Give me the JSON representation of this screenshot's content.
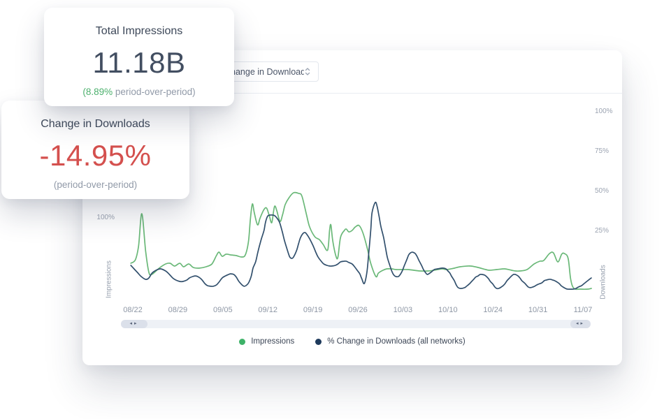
{
  "cards": {
    "impressions": {
      "title": "Total Impressions",
      "value": "11.18B",
      "delta_highlight": "(8.89%",
      "delta_rest": " period-over-period)",
      "delta_color": "#4cb06d"
    },
    "downloads": {
      "title": "Change in Downloads",
      "value": "-14.95%",
      "subtitle": "(period-over-period)",
      "value_color": "#d4504e"
    }
  },
  "panel": {
    "metric_dropdown": {
      "selected": "Change in Downloads"
    },
    "scrollbar": {
      "left_icon": "◂▸",
      "right_icon": "◂▸"
    }
  },
  "chart_data": {
    "type": "line",
    "x_axis": {
      "tick_labels": [
        "08/22",
        "08/29",
        "09/05",
        "09/12",
        "09/19",
        "09/26",
        "10/03",
        "10/10",
        "10/24",
        "10/31",
        "11/07"
      ]
    },
    "left_axis": {
      "title": "Impressions",
      "ticks": [
        {
          "label": "100%",
          "value": 100
        }
      ]
    },
    "right_axis": {
      "title": "Downloads",
      "ticks": [
        {
          "label": "100%",
          "value": 100
        },
        {
          "label": "75%",
          "value": 75
        },
        {
          "label": "50%",
          "value": 50
        },
        {
          "label": "25%",
          "value": 25
        }
      ]
    },
    "legend": [
      {
        "label": "Impressions",
        "color": "#3eb268"
      },
      {
        "label": "% Change in Downloads (all networks)",
        "color": "#1e3a5c"
      }
    ],
    "series": [
      {
        "name": "Impressions",
        "axis": "left",
        "color": "#6ab878",
        "unit": "pct",
        "points": [
          [
            -0.3,
            14.5
          ],
          [
            0.4,
            21.1
          ],
          [
            0.9,
            47.4
          ],
          [
            1.4,
            107.9
          ],
          [
            2,
            36.8
          ],
          [
            2.5,
            -2.6
          ],
          [
            2.9,
            -6.6
          ],
          [
            3.5,
            -1.3
          ],
          [
            4.1,
            5.3
          ],
          [
            5.1,
            13.2
          ],
          [
            5.8,
            14.5
          ],
          [
            6.5,
            9.2
          ],
          [
            7.3,
            14.5
          ],
          [
            7.9,
            7.9
          ],
          [
            8.7,
            13.2
          ],
          [
            9.4,
            6.6
          ],
          [
            10.3,
            5.3
          ],
          [
            11.4,
            7.9
          ],
          [
            12.3,
            13.2
          ],
          [
            13,
            28.9
          ],
          [
            13.4,
            35.5
          ],
          [
            13.9,
            27.6
          ],
          [
            14.5,
            31.6
          ],
          [
            15.2,
            30.3
          ],
          [
            16.1,
            28.9
          ],
          [
            16.9,
            26.3
          ],
          [
            17.5,
            30.3
          ],
          [
            18,
            56.6
          ],
          [
            18.3,
            100
          ],
          [
            18.6,
            126.3
          ],
          [
            18.9,
            109.2
          ],
          [
            19.4,
            86.8
          ],
          [
            19.8,
            100
          ],
          [
            20.4,
            115.8
          ],
          [
            20.8,
            118.4
          ],
          [
            21.2,
            105.3
          ],
          [
            21.6,
            90.8
          ],
          [
            21.9,
            113.2
          ],
          [
            22.1,
            122.4
          ],
          [
            22.4,
            113.2
          ],
          [
            22.9,
            93.4
          ],
          [
            23.3,
            106.6
          ],
          [
            23.7,
            125
          ],
          [
            24.3,
            138.2
          ],
          [
            25,
            147.4
          ],
          [
            25.8,
            146.1
          ],
          [
            26.3,
            140.8
          ],
          [
            27,
            106.6
          ],
          [
            27.5,
            82.9
          ],
          [
            28.3,
            64.5
          ],
          [
            29,
            59.2
          ],
          [
            29.6,
            50
          ],
          [
            30.3,
            39.5
          ],
          [
            30.6,
            76.3
          ],
          [
            30.8,
            86.8
          ],
          [
            31.1,
            56.6
          ],
          [
            31.6,
            27.6
          ],
          [
            31.9,
            26.3
          ],
          [
            32.3,
            63.2
          ],
          [
            32.9,
            76.3
          ],
          [
            33.2,
            78.9
          ],
          [
            33.6,
            73.7
          ],
          [
            34.1,
            76.3
          ],
          [
            34.6,
            82.9
          ],
          [
            35.2,
            85.5
          ],
          [
            35.8,
            71.1
          ],
          [
            36.5,
            40.8
          ],
          [
            37,
            14.5
          ],
          [
            37.8,
            -10.5
          ],
          [
            38.2,
            -3.9
          ],
          [
            38.9,
            1.3
          ],
          [
            39.5,
            3.9
          ],
          [
            40.3,
            3.9
          ],
          [
            41,
            2.6
          ],
          [
            42.8,
            2.6
          ],
          [
            44.6,
            0
          ],
          [
            46,
            0
          ],
          [
            46.8,
            1.3
          ],
          [
            48.1,
            3.9
          ],
          [
            48.8,
            2.6
          ],
          [
            50,
            5.3
          ],
          [
            50.9,
            7.9
          ],
          [
            52,
            9.2
          ],
          [
            52.6,
            9.2
          ],
          [
            53.7,
            6.6
          ],
          [
            54.9,
            2.6
          ],
          [
            55.5,
            1.3
          ],
          [
            56.6,
            2.6
          ],
          [
            57.8,
            3.9
          ],
          [
            58.9,
            1.3
          ],
          [
            59.5,
            0
          ],
          [
            60.2,
            0
          ],
          [
            61.3,
            2.6
          ],
          [
            62.4,
            13.2
          ],
          [
            63.3,
            18.4
          ],
          [
            63.9,
            19.7
          ],
          [
            64.8,
            32.9
          ],
          [
            65.4,
            34.2
          ],
          [
            66.1,
            17.1
          ],
          [
            66.7,
            31.6
          ],
          [
            67.1,
            32.9
          ],
          [
            67.7,
            23.7
          ],
          [
            68.1,
            -15.8
          ],
          [
            68.6,
            -32.9
          ],
          [
            69.6,
            -34.2
          ],
          [
            70.8,
            -34.2
          ],
          [
            71.3,
            -32.9
          ]
        ]
      },
      {
        "name": "% Change in Downloads (all networks)",
        "axis": "right",
        "color": "#32506d",
        "unit": "pct",
        "points": [
          [
            -0.3,
            3.5
          ],
          [
            0.2,
            1.3
          ],
          [
            0.8,
            -1.3
          ],
          [
            1.3,
            -3.5
          ],
          [
            2,
            -5.3
          ],
          [
            2.5,
            -4.4
          ],
          [
            3,
            -1.3
          ],
          [
            3.6,
            0.4
          ],
          [
            4.3,
            1.3
          ],
          [
            5.1,
            0
          ],
          [
            5.7,
            -2.2
          ],
          [
            6.2,
            -4.4
          ],
          [
            6.7,
            -5.7
          ],
          [
            7.3,
            -6.6
          ],
          [
            7.8,
            -6.6
          ],
          [
            8.4,
            -5.7
          ],
          [
            8.8,
            -4.4
          ],
          [
            9.3,
            -3.5
          ],
          [
            9.7,
            -3.1
          ],
          [
            10.1,
            -3.5
          ],
          [
            10.7,
            -5.3
          ],
          [
            11.2,
            -7.9
          ],
          [
            11.6,
            -9.2
          ],
          [
            12.1,
            -9.6
          ],
          [
            12.5,
            -9.6
          ],
          [
            13,
            -8.8
          ],
          [
            13.4,
            -7
          ],
          [
            13.9,
            -4.4
          ],
          [
            14.4,
            -3.1
          ],
          [
            14.9,
            -2.2
          ],
          [
            15.2,
            -1.8
          ],
          [
            15.7,
            -2.2
          ],
          [
            16.1,
            -3.9
          ],
          [
            16.5,
            -6.6
          ],
          [
            17,
            -8.8
          ],
          [
            17.3,
            -9.6
          ],
          [
            17.6,
            -9.2
          ],
          [
            18,
            -7.5
          ],
          [
            18.4,
            -3.5
          ],
          [
            18.7,
            1.8
          ],
          [
            19.1,
            5.7
          ],
          [
            19.4,
            11
          ],
          [
            19.7,
            15.8
          ],
          [
            20,
            20.2
          ],
          [
            20.4,
            25.4
          ],
          [
            20.6,
            29.8
          ],
          [
            20.8,
            32.9
          ],
          [
            21,
            34.6
          ],
          [
            21.3,
            35.1
          ],
          [
            21.8,
            35.1
          ],
          [
            22.1,
            34.6
          ],
          [
            22.4,
            33.3
          ],
          [
            22.8,
            30.7
          ],
          [
            23.2,
            25.4
          ],
          [
            23.6,
            18.9
          ],
          [
            24.1,
            12.3
          ],
          [
            24.4,
            8.8
          ],
          [
            24.7,
            7.9
          ],
          [
            25,
            8.8
          ],
          [
            25.5,
            13.2
          ],
          [
            25.8,
            17.5
          ],
          [
            26.1,
            21.1
          ],
          [
            26.5,
            23.7
          ],
          [
            26.8,
            24.1
          ],
          [
            27.1,
            22.8
          ],
          [
            27.5,
            20.2
          ],
          [
            28,
            16.2
          ],
          [
            28.4,
            12.3
          ],
          [
            28.8,
            8.8
          ],
          [
            29.3,
            6.1
          ],
          [
            29.7,
            4.4
          ],
          [
            30.2,
            3.5
          ],
          [
            30.6,
            3.1
          ],
          [
            31,
            3.1
          ],
          [
            31.5,
            3.5
          ],
          [
            31.9,
            4.4
          ],
          [
            32.3,
            5.7
          ],
          [
            32.8,
            6.1
          ],
          [
            33.2,
            6.1
          ],
          [
            33.6,
            5.3
          ],
          [
            34.1,
            4.4
          ],
          [
            34.5,
            2.6
          ],
          [
            34.9,
            0.4
          ],
          [
            35.3,
            -1.8
          ],
          [
            35.6,
            -4.8
          ],
          [
            36,
            -7.9
          ],
          [
            36.4,
            -0.9
          ],
          [
            36.7,
            11.4
          ],
          [
            37,
            25.4
          ],
          [
            37.2,
            36.4
          ],
          [
            37.7,
            43
          ],
          [
            38,
            40.4
          ],
          [
            38.3,
            34.2
          ],
          [
            38.6,
            27.6
          ],
          [
            39,
            21.1
          ],
          [
            39.3,
            14.5
          ],
          [
            39.6,
            8.3
          ],
          [
            40,
            3.1
          ],
          [
            40.3,
            -0.4
          ],
          [
            40.6,
            -2.6
          ],
          [
            40.9,
            -3.5
          ],
          [
            41.3,
            -3.5
          ],
          [
            41.6,
            -2.2
          ],
          [
            41.9,
            0
          ],
          [
            42.2,
            3.1
          ],
          [
            42.6,
            7
          ],
          [
            42.9,
            10.1
          ],
          [
            43.2,
            11.4
          ],
          [
            43.5,
            11.8
          ],
          [
            43.9,
            11
          ],
          [
            44.2,
            9.2
          ],
          [
            44.5,
            6.6
          ],
          [
            44.9,
            3.5
          ],
          [
            45.2,
            0.9
          ],
          [
            45.5,
            -0.9
          ],
          [
            45.8,
            -2.2
          ],
          [
            46.2,
            -1.3
          ],
          [
            46.5,
            -0.4
          ],
          [
            46.9,
            0.9
          ],
          [
            47.4,
            1.3
          ],
          [
            48.2,
            1.8
          ],
          [
            48.7,
            1.3
          ],
          [
            49,
            0
          ],
          [
            49.3,
            -1.3
          ],
          [
            49.6,
            -3.5
          ],
          [
            50,
            -6.1
          ],
          [
            50.3,
            -8.8
          ],
          [
            50.6,
            -10.5
          ],
          [
            51,
            -11
          ],
          [
            51.6,
            -10.5
          ],
          [
            51.9,
            -9.6
          ],
          [
            52.4,
            -7.9
          ],
          [
            52.7,
            -6.6
          ],
          [
            53,
            -5.3
          ],
          [
            53.3,
            -3.9
          ],
          [
            53.7,
            -3.1
          ],
          [
            54,
            -2.2
          ],
          [
            54.3,
            -2.2
          ],
          [
            54.7,
            -2.6
          ],
          [
            55,
            -3.5
          ],
          [
            55.3,
            -4.8
          ],
          [
            55.6,
            -6.6
          ],
          [
            56,
            -8.3
          ],
          [
            56.3,
            -10.1
          ],
          [
            56.6,
            -11
          ],
          [
            56.9,
            -11
          ],
          [
            57.3,
            -10.1
          ],
          [
            57.6,
            -9.2
          ],
          [
            57.9,
            -7.9
          ],
          [
            58.2,
            -6.1
          ],
          [
            58.6,
            -4.4
          ],
          [
            58.9,
            -3.1
          ],
          [
            59.2,
            -2.2
          ],
          [
            59.5,
            -2.2
          ],
          [
            59.9,
            -3.1
          ],
          [
            60.2,
            -4.4
          ],
          [
            60.5,
            -6.1
          ],
          [
            60.9,
            -7.5
          ],
          [
            61.2,
            -8.8
          ],
          [
            61.5,
            -10.1
          ],
          [
            61.8,
            -10.5
          ],
          [
            62.2,
            -10.1
          ],
          [
            62.5,
            -9.6
          ],
          [
            62.8,
            -8.8
          ],
          [
            63.1,
            -8.3
          ],
          [
            63.6,
            -7.5
          ],
          [
            64,
            -6.1
          ],
          [
            64.3,
            -5.7
          ],
          [
            64.7,
            -5.3
          ],
          [
            65,
            -5.3
          ],
          [
            65.3,
            -5.7
          ],
          [
            65.6,
            -6.1
          ],
          [
            66,
            -7
          ],
          [
            66.3,
            -7.9
          ],
          [
            66.6,
            -9.2
          ],
          [
            66.9,
            -10.1
          ],
          [
            67.3,
            -11
          ],
          [
            67.6,
            -11.4
          ],
          [
            68.5,
            -11.4
          ],
          [
            68.9,
            -11
          ],
          [
            69.3,
            -10.1
          ],
          [
            69.8,
            -9.2
          ],
          [
            70.2,
            -7.9
          ],
          [
            70.6,
            -6.6
          ],
          [
            71,
            -5.3
          ],
          [
            71.3,
            -4.4
          ]
        ]
      }
    ]
  }
}
